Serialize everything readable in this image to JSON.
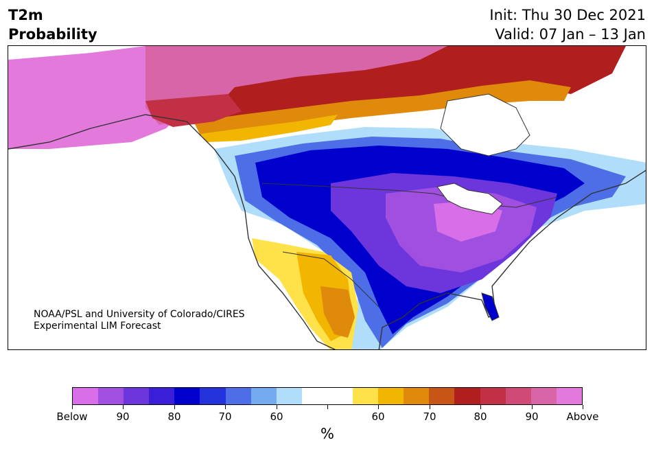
{
  "header": {
    "title_line1": "T2m",
    "title_line2": "Probability",
    "init": "Init: Thu 30 Dec 2021",
    "valid": "Valid: 07 Jan – 13 Jan"
  },
  "credit": {
    "line1": "NOAA/PSL and University of Colorado/CIRES",
    "line2": "Experimental LIM Forecast"
  },
  "colorbar": {
    "colors": [
      "#d86ee8",
      "#a04fe0",
      "#6c36dc",
      "#3b1fd8",
      "#0000cd",
      "#2432dc",
      "#4d6ee6",
      "#74aaf0",
      "#b0ddfa",
      "#ffffff",
      "#ffffff",
      "#ffe14a",
      "#f2b600",
      "#e08a0c",
      "#c85516",
      "#b01e1e",
      "#c23046",
      "#d04a78",
      "#d865a8",
      "#e479dc"
    ],
    "tick_labels": [
      "Below",
      "90",
      "80",
      "70",
      "60",
      "",
      "60",
      "70",
      "80",
      "90",
      "Above"
    ],
    "unit_label": "%"
  },
  "map": {
    "region": "North America",
    "palette": {
      "above_high": "#e479dc",
      "above_mid": "#d04a78",
      "above_red": "#b01e1e",
      "above_orange": "#e08a0c",
      "above_yellow": "#f2b600",
      "below_light": "#b0ddfa",
      "below_mid": "#4d6ee6",
      "below_deep": "#0000cd",
      "below_purple": "#6c36dc",
      "below_max": "#d86ee8",
      "land_outline": "#333333"
    }
  }
}
